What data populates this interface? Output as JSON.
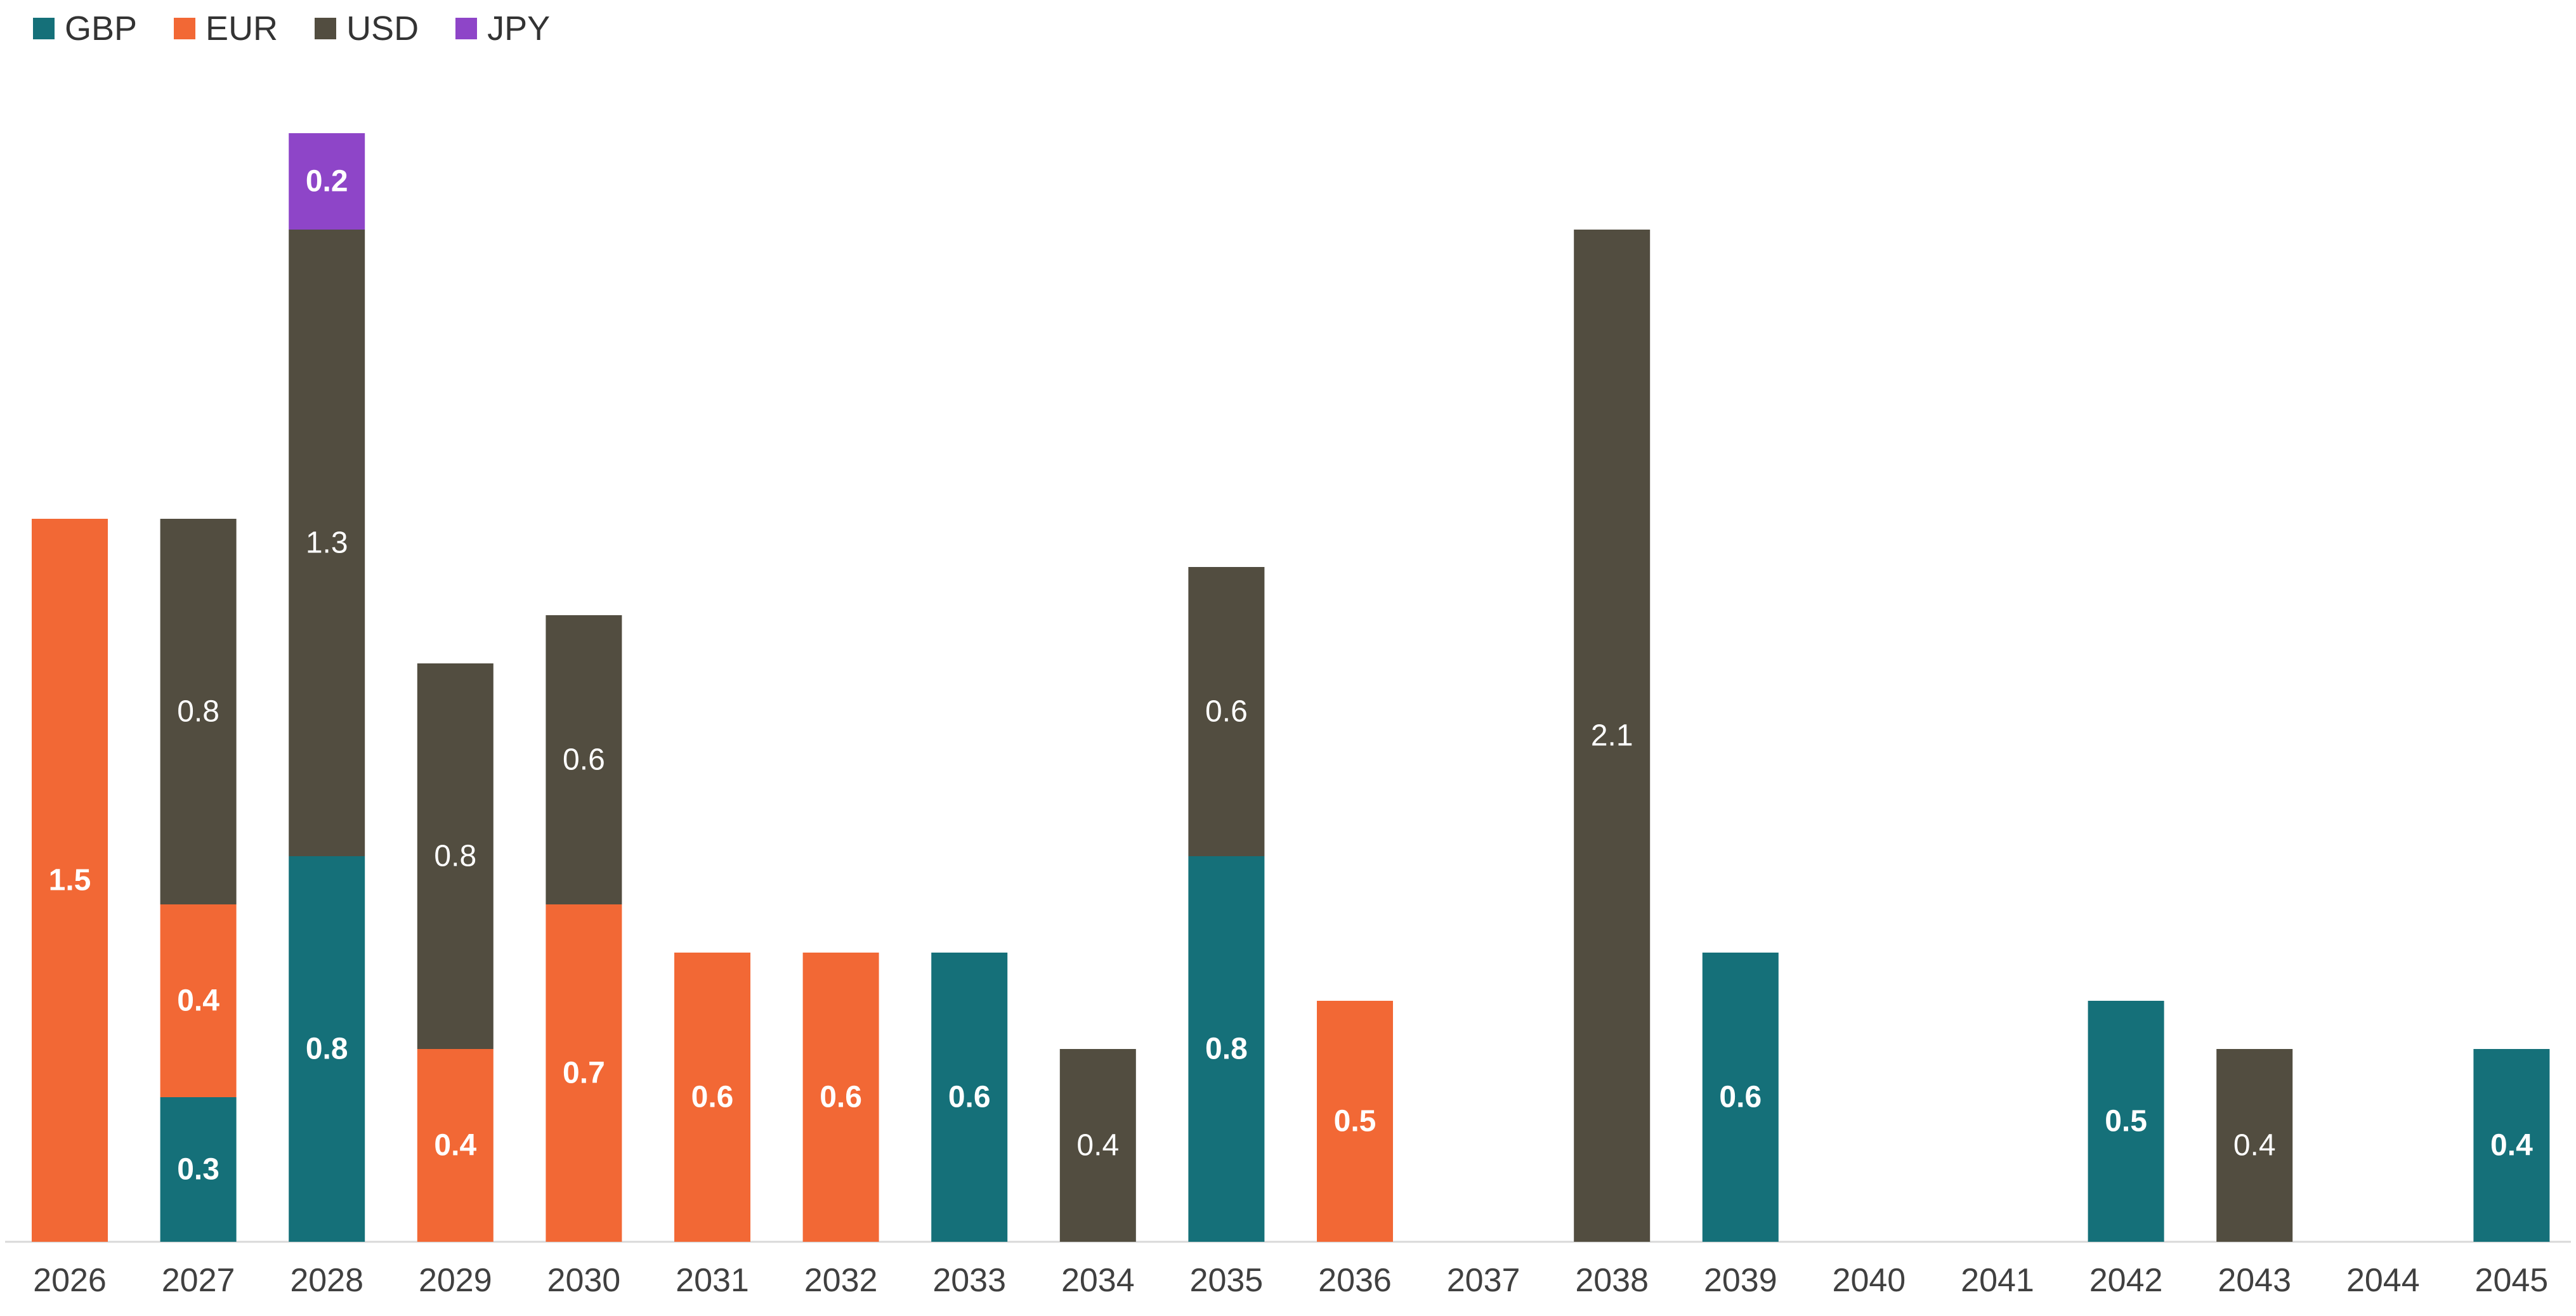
{
  "chart_data": {
    "type": "bar",
    "stacked": true,
    "categories": [
      "2026",
      "2027",
      "2028",
      "2029",
      "2030",
      "2031",
      "2032",
      "2033",
      "2034",
      "2035",
      "2036",
      "2037",
      "2038",
      "2039",
      "2040",
      "2041",
      "2042",
      "2043",
      "2044",
      "2045"
    ],
    "series": [
      {
        "name": "GBP",
        "color": "#157079",
        "values": [
          0,
          0.3,
          0.8,
          0,
          0,
          0,
          0,
          0.6,
          0,
          0.8,
          0,
          0,
          0,
          0.6,
          0,
          0,
          0.5,
          0,
          0,
          0.4
        ]
      },
      {
        "name": "EUR",
        "color": "#F26835",
        "values": [
          1.5,
          0.4,
          0,
          0.4,
          0.7,
          0.6,
          0.6,
          0,
          0,
          0,
          0.5,
          0,
          0,
          0,
          0,
          0,
          0,
          0,
          0,
          0
        ]
      },
      {
        "name": "USD",
        "color": "#524D40",
        "values": [
          0,
          0.8,
          1.3,
          0.8,
          0.6,
          0,
          0,
          0,
          0.4,
          0.6,
          0,
          0,
          2.1,
          0,
          0,
          0,
          0,
          0.4,
          0,
          0
        ]
      },
      {
        "name": "JPY",
        "color": "#8E45C8",
        "values": [
          0,
          0,
          0.2,
          0,
          0,
          0,
          0,
          0,
          0,
          0,
          0,
          0,
          0,
          0,
          0,
          0,
          0,
          0,
          0,
          0
        ]
      }
    ],
    "ylim": [
      0,
      2.3
    ],
    "grid": false,
    "legend_position": "top-left",
    "title": "",
    "xlabel": "",
    "ylabel": ""
  }
}
